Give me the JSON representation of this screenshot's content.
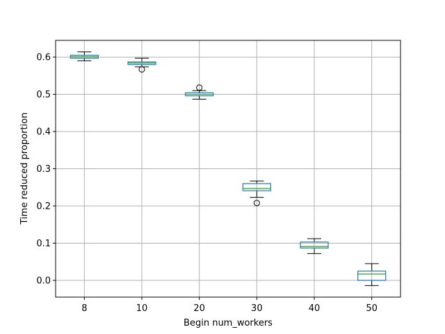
{
  "chart_data": {
    "type": "box",
    "xlabel": "Begin num_workers",
    "ylabel": "Time reduced proportion",
    "ylim": [
      -0.045,
      0.645
    ],
    "yticks": [
      "0.0",
      "0.1",
      "0.2",
      "0.3",
      "0.4",
      "0.5",
      "0.6"
    ],
    "grid": true,
    "colors": {
      "box": "#1f77b4",
      "median": "#2ca02c",
      "whisker": "#000000",
      "grid": "#b0b0b0"
    },
    "categories": [
      "8",
      "10",
      "20",
      "30",
      "40",
      "50"
    ],
    "boxes": [
      {
        "category": "8",
        "whisker_low": 0.59,
        "q1": 0.597,
        "median": 0.601,
        "q3": 0.605,
        "whisker_high": 0.614,
        "fliers": []
      },
      {
        "category": "10",
        "whisker_low": 0.574,
        "q1": 0.58,
        "median": 0.584,
        "q3": 0.587,
        "whisker_high": 0.597,
        "fliers": [
          0.567
        ]
      },
      {
        "category": "20",
        "whisker_low": 0.487,
        "q1": 0.496,
        "median": 0.5,
        "q3": 0.504,
        "whisker_high": 0.51,
        "fliers": [
          0.518
        ]
      },
      {
        "category": "30",
        "whisker_low": 0.223,
        "q1": 0.241,
        "median": 0.247,
        "q3": 0.26,
        "whisker_high": 0.267,
        "fliers": [
          0.208
        ]
      },
      {
        "category": "40",
        "whisker_low": 0.072,
        "q1": 0.087,
        "median": 0.091,
        "q3": 0.103,
        "whisker_high": 0.112,
        "fliers": []
      },
      {
        "category": "50",
        "whisker_low": -0.014,
        "q1": 0.0,
        "median": 0.017,
        "q3": 0.025,
        "whisker_high": 0.045,
        "fliers": []
      }
    ]
  }
}
